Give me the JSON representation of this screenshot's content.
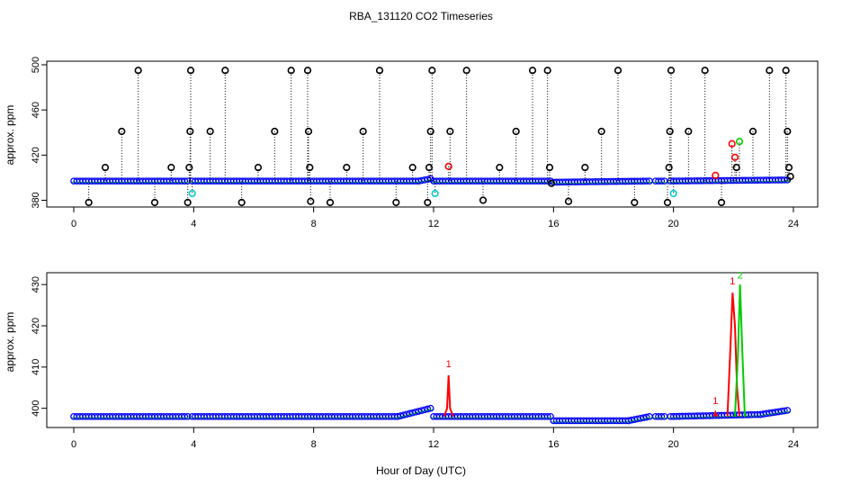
{
  "figure": {
    "title": "RBA_131120  CO2 Timeseries",
    "xlabel": "Hour of Day (UTC)"
  },
  "colors": {
    "black": "#000000",
    "blue": "#0000ff",
    "green": "#00cc00",
    "red": "#ff0000",
    "cyan": "#00cccc",
    "orange": "#ff9900"
  },
  "chart_data": [
    {
      "type": "scatter",
      "panel": "top",
      "ylabel": "approx. ppm",
      "xlim": [
        0,
        24
      ],
      "ylim": [
        378,
        500
      ],
      "x_ticks": [
        0,
        4,
        8,
        12,
        16,
        20,
        24
      ],
      "y_ticks": [
        380,
        420,
        460,
        500
      ],
      "baseline": {
        "segments": [
          {
            "x": [
              0.0,
              3.8
            ],
            "y": [
              397,
              397
            ]
          },
          {
            "x": [
              3.95,
              7.9
            ],
            "y": [
              397,
              397
            ]
          },
          {
            "x": [
              8.0,
              11.5
            ],
            "y": [
              397,
              397
            ]
          },
          {
            "x": [
              11.5,
              11.9
            ],
            "y": [
              397,
              399
            ]
          },
          {
            "x": [
              12.0,
              15.9
            ],
            "y": [
              397,
              397
            ]
          },
          {
            "x": [
              16.0,
              19.2
            ],
            "y": [
              396,
              397
            ]
          },
          {
            "x": [
              19.4,
              19.7
            ],
            "y": [
              397,
              397
            ]
          },
          {
            "x": [
              19.9,
              23.8
            ],
            "y": [
              397,
              398
            ]
          }
        ]
      },
      "spike_points": [
        {
          "x": 0.5,
          "y": 378,
          "color": "black"
        },
        {
          "x": 1.05,
          "y": 409,
          "color": "black"
        },
        {
          "x": 1.6,
          "y": 441,
          "color": "black"
        },
        {
          "x": 2.15,
          "y": 495,
          "color": "black"
        },
        {
          "x": 2.7,
          "y": 378,
          "color": "black"
        },
        {
          "x": 3.25,
          "y": 409,
          "color": "black"
        },
        {
          "x": 3.8,
          "y": 378,
          "color": "black"
        },
        {
          "x": 3.85,
          "y": 409,
          "color": "black"
        },
        {
          "x": 3.88,
          "y": 441,
          "color": "black"
        },
        {
          "x": 3.9,
          "y": 495,
          "color": "black"
        },
        {
          "x": 3.95,
          "y": 386,
          "color": "cyan"
        },
        {
          "x": 4.55,
          "y": 441,
          "color": "black"
        },
        {
          "x": 5.05,
          "y": 495,
          "color": "black"
        },
        {
          "x": 5.6,
          "y": 378,
          "color": "black"
        },
        {
          "x": 6.15,
          "y": 409,
          "color": "black"
        },
        {
          "x": 6.7,
          "y": 441,
          "color": "black"
        },
        {
          "x": 7.25,
          "y": 495,
          "color": "black"
        },
        {
          "x": 7.8,
          "y": 495,
          "color": "black"
        },
        {
          "x": 7.83,
          "y": 441,
          "color": "black"
        },
        {
          "x": 7.87,
          "y": 409,
          "color": "black"
        },
        {
          "x": 7.9,
          "y": 379,
          "color": "black"
        },
        {
          "x": 8.55,
          "y": 378,
          "color": "black"
        },
        {
          "x": 9.1,
          "y": 409,
          "color": "black"
        },
        {
          "x": 9.65,
          "y": 441,
          "color": "black"
        },
        {
          "x": 10.2,
          "y": 495,
          "color": "black"
        },
        {
          "x": 10.75,
          "y": 378,
          "color": "black"
        },
        {
          "x": 11.3,
          "y": 409,
          "color": "black"
        },
        {
          "x": 11.8,
          "y": 378,
          "color": "black"
        },
        {
          "x": 11.85,
          "y": 409,
          "color": "black"
        },
        {
          "x": 11.9,
          "y": 441,
          "color": "black"
        },
        {
          "x": 11.95,
          "y": 495,
          "color": "black"
        },
        {
          "x": 12.05,
          "y": 386,
          "color": "cyan"
        },
        {
          "x": 12.5,
          "y": 410,
          "color": "red"
        },
        {
          "x": 12.55,
          "y": 441,
          "color": "black"
        },
        {
          "x": 13.1,
          "y": 495,
          "color": "black"
        },
        {
          "x": 13.65,
          "y": 380,
          "color": "black"
        },
        {
          "x": 14.2,
          "y": 409,
          "color": "black"
        },
        {
          "x": 14.75,
          "y": 441,
          "color": "black"
        },
        {
          "x": 15.3,
          "y": 495,
          "color": "black"
        },
        {
          "x": 15.8,
          "y": 495,
          "color": "black"
        },
        {
          "x": 15.87,
          "y": 409,
          "color": "black"
        },
        {
          "x": 15.93,
          "y": 395,
          "color": "black"
        },
        {
          "x": 16.5,
          "y": 379,
          "color": "black"
        },
        {
          "x": 17.05,
          "y": 409,
          "color": "black"
        },
        {
          "x": 17.6,
          "y": 441,
          "color": "black"
        },
        {
          "x": 18.15,
          "y": 495,
          "color": "black"
        },
        {
          "x": 18.7,
          "y": 378,
          "color": "black"
        },
        {
          "x": 19.8,
          "y": 378,
          "color": "black"
        },
        {
          "x": 19.85,
          "y": 409,
          "color": "black"
        },
        {
          "x": 19.88,
          "y": 441,
          "color": "black"
        },
        {
          "x": 19.92,
          "y": 495,
          "color": "black"
        },
        {
          "x": 20.0,
          "y": 386,
          "color": "cyan"
        },
        {
          "x": 20.5,
          "y": 441,
          "color": "black"
        },
        {
          "x": 21.05,
          "y": 495,
          "color": "black"
        },
        {
          "x": 21.4,
          "y": 402,
          "color": "red"
        },
        {
          "x": 21.6,
          "y": 378,
          "color": "black"
        },
        {
          "x": 21.95,
          "y": 430,
          "color": "red"
        },
        {
          "x": 22.05,
          "y": 418,
          "color": "red"
        },
        {
          "x": 22.1,
          "y": 409,
          "color": "black"
        },
        {
          "x": 22.2,
          "y": 432,
          "color": "green"
        },
        {
          "x": 22.65,
          "y": 441,
          "color": "black"
        },
        {
          "x": 23.2,
          "y": 495,
          "color": "black"
        },
        {
          "x": 23.75,
          "y": 495,
          "color": "black"
        },
        {
          "x": 23.8,
          "y": 441,
          "color": "black"
        },
        {
          "x": 23.85,
          "y": 409,
          "color": "black"
        },
        {
          "x": 23.9,
          "y": 401,
          "color": "black"
        }
      ]
    },
    {
      "type": "line",
      "panel": "bottom",
      "ylabel": "approx. ppm",
      "xlim": [
        0,
        24
      ],
      "ylim": [
        396,
        432
      ],
      "x_ticks": [
        0,
        4,
        8,
        12,
        16,
        20,
        24
      ],
      "y_ticks": [
        400,
        410,
        420,
        430
      ],
      "segments": [
        {
          "x": [
            0.0,
            3.8
          ],
          "y": [
            398,
            398
          ]
        },
        {
          "x": [
            3.95,
            7.9
          ],
          "y": [
            398,
            398
          ]
        },
        {
          "x": [
            8.0,
            10.8
          ],
          "y": [
            398,
            398
          ]
        },
        {
          "x": [
            10.8,
            11.9
          ],
          "y": [
            398,
            400
          ]
        },
        {
          "x": [
            12.0,
            15.9
          ],
          "y": [
            398,
            398
          ]
        },
        {
          "x": [
            16.0,
            18.5
          ],
          "y": [
            397,
            397
          ]
        },
        {
          "x": [
            18.5,
            19.2
          ],
          "y": [
            397,
            398
          ]
        },
        {
          "x": [
            19.4,
            19.7
          ],
          "y": [
            398,
            398
          ]
        },
        {
          "x": [
            19.9,
            22.9
          ],
          "y": [
            398,
            398.5
          ]
        },
        {
          "x": [
            22.9,
            23.8
          ],
          "y": [
            398.5,
            399.5
          ]
        }
      ],
      "series": [
        {
          "label": "1",
          "color": "red",
          "peaks": [
            {
              "x": [
                12.35,
                12.45,
                12.5,
                12.55,
                12.65
              ],
              "y": [
                398,
                400,
                408,
                400,
                398
              ],
              "label_x": 12.5,
              "label_y": 410
            },
            {
              "x": [
                21.35,
                21.4,
                21.45
              ],
              "y": [
                398,
                399,
                398
              ],
              "label_x": 21.4,
              "label_y": 401
            },
            {
              "x": [
                21.8,
                21.9,
                21.97,
                22.05,
                22.12,
                22.2
              ],
              "y": [
                398,
                415,
                428,
                420,
                405,
                398
              ],
              "label_x": 21.97,
              "label_y": 430
            }
          ]
        },
        {
          "label": "2",
          "color": "green",
          "peaks": [
            {
              "x": [
                22.05,
                22.15,
                22.22,
                22.3,
                22.38
              ],
              "y": [
                398,
                413,
                430,
                413,
                398
              ],
              "label_x": 22.22,
              "label_y": 431.5
            }
          ]
        }
      ]
    }
  ]
}
